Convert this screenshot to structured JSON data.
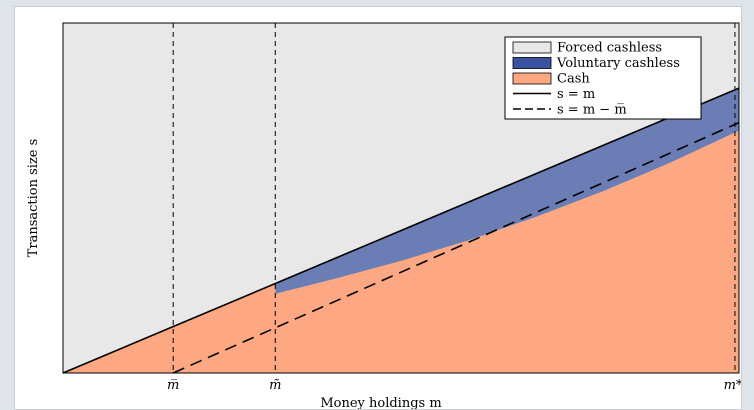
{
  "chart_data": {
    "type": "area",
    "title": "",
    "xlabel": "Money holdings m",
    "ylabel": "Transaction size s",
    "xlim": [
      0,
      1
    ],
    "ylim": [
      0,
      1
    ],
    "x_ticks": [
      {
        "label": "m̅",
        "value": 0.163
      },
      {
        "label": "m̃",
        "value": 0.314
      },
      {
        "label": "m*",
        "value": 1.0
      }
    ],
    "vertical_lines": [
      0.163,
      0.314,
      0.994
    ],
    "regions": [
      {
        "name": "Forced cashless",
        "color": "#e8e8e8"
      },
      {
        "name": "Voluntary cashless",
        "color": "#6b7db5"
      },
      {
        "name": "Cash",
        "color": "#fda883"
      }
    ],
    "lines": [
      {
        "name": "s = m",
        "style": "solid",
        "color": "#000000"
      },
      {
        "name": "s = m − m̅",
        "style": "dashed",
        "color": "#000000"
      }
    ],
    "series": [
      {
        "name": "Cash",
        "x": [
          0,
          0.163,
          0.314,
          0.4,
          0.5,
          0.6,
          0.7,
          0.8,
          0.9,
          1.0
        ],
        "values": [
          0,
          0.117,
          0.226,
          0.268,
          0.32,
          0.379,
          0.446,
          0.52,
          0.602,
          0.692
        ]
      }
    ],
    "legend": {
      "position": "top-right",
      "items": [
        {
          "label": "Forced cashless",
          "kind": "patch",
          "color": "#e8e8e8"
        },
        {
          "label": "Voluntary cashless",
          "kind": "patch",
          "color": "#3a51a0"
        },
        {
          "label": "Cash",
          "kind": "patch",
          "color": "#fda883"
        },
        {
          "label": "s = m",
          "kind": "line",
          "dash": false
        },
        {
          "label": "s = m − m̅",
          "kind": "line",
          "dash": true
        }
      ]
    },
    "grid": false
  }
}
